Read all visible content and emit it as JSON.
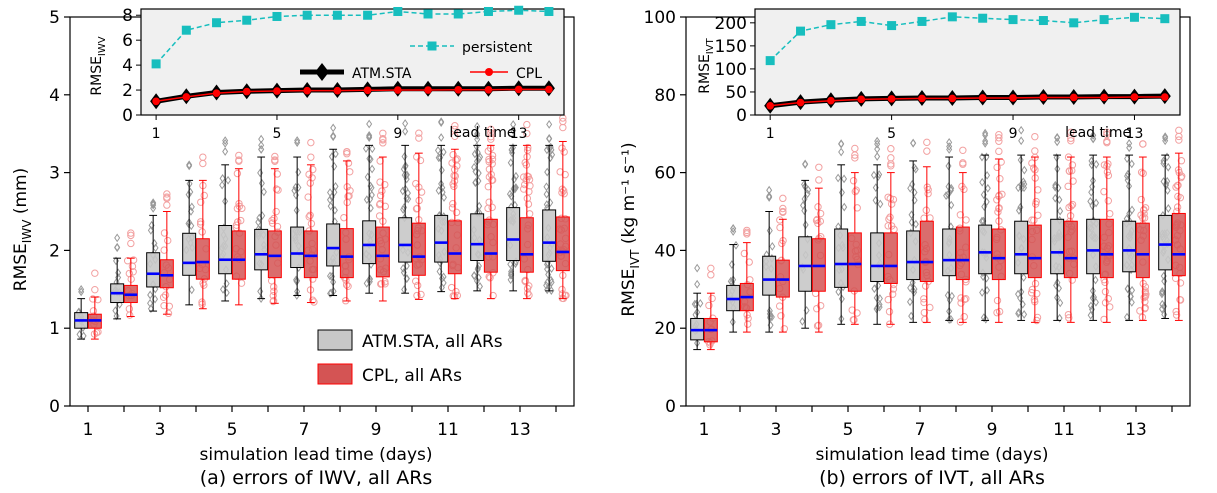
{
  "colors": {
    "atm_box": "#c8c8c8",
    "atm_edge": "#000000",
    "cpl_box": "#d45454",
    "cpl_edge": "#ff0000",
    "median": "#0000ff",
    "persistent": "#17bebe",
    "inset_bg": "#f0f0f0",
    "atm_outlier": "#999999",
    "cpl_outlier": "#f2a0a0"
  },
  "chart_data": [
    {
      "type": "box",
      "panel": "a",
      "caption": "(a) errors of IWV, all ARs",
      "xlabel": "simulation lead time (days)",
      "ylabel_main": "RMSE",
      "ylabel_sub": "IWV",
      "ylabel_unit": " (mm)",
      "ylim": [
        0,
        5
      ],
      "yticks": [
        "0",
        "1",
        "2",
        "3",
        "4",
        "5"
      ],
      "xticks": [
        "1",
        "3",
        "5",
        "7",
        "9",
        "11",
        "13"
      ],
      "lead_days": [
        1,
        2,
        3,
        4,
        5,
        6,
        7,
        8,
        9,
        10,
        11,
        12,
        13,
        14
      ],
      "legend": [
        "ATM.STA, all ARs",
        "CPL, all ARs"
      ],
      "atm": {
        "median": [
          1.1,
          1.45,
          1.7,
          1.84,
          1.88,
          1.95,
          1.96,
          2.03,
          2.07,
          2.07,
          2.1,
          2.08,
          2.14,
          2.1
        ],
        "q1": [
          1.0,
          1.33,
          1.53,
          1.68,
          1.7,
          1.75,
          1.78,
          1.8,
          1.83,
          1.85,
          1.85,
          1.87,
          1.87,
          1.86
        ],
        "q3": [
          1.2,
          1.57,
          1.97,
          2.22,
          2.32,
          2.27,
          2.3,
          2.34,
          2.38,
          2.42,
          2.45,
          2.47,
          2.55,
          2.52
        ],
        "whislo": [
          0.86,
          1.12,
          1.22,
          1.3,
          1.35,
          1.38,
          1.42,
          1.42,
          1.45,
          1.45,
          1.47,
          1.48,
          1.48,
          1.48
        ],
        "whishi": [
          1.38,
          1.9,
          2.45,
          2.9,
          3.1,
          3.2,
          3.2,
          3.3,
          3.35,
          3.35,
          3.35,
          3.35,
          3.35,
          3.35
        ]
      },
      "cpl": {
        "median": [
          1.1,
          1.43,
          1.68,
          1.85,
          1.88,
          1.93,
          1.93,
          1.92,
          1.93,
          1.92,
          1.96,
          1.96,
          1.95,
          1.98
        ],
        "q1": [
          1.0,
          1.33,
          1.52,
          1.63,
          1.63,
          1.65,
          1.65,
          1.65,
          1.66,
          1.68,
          1.7,
          1.72,
          1.72,
          1.74
        ],
        "q3": [
          1.18,
          1.55,
          1.88,
          2.15,
          2.25,
          2.25,
          2.25,
          2.28,
          2.3,
          2.35,
          2.38,
          2.4,
          2.42,
          2.43
        ],
        "whislo": [
          0.86,
          1.15,
          1.18,
          1.25,
          1.3,
          1.32,
          1.33,
          1.35,
          1.35,
          1.37,
          1.38,
          1.38,
          1.38,
          1.38
        ],
        "whishi": [
          1.4,
          1.9,
          2.5,
          2.9,
          3.05,
          3.05,
          3.1,
          3.15,
          3.2,
          3.25,
          3.3,
          3.35,
          3.35,
          3.4
        ]
      },
      "inset": {
        "ylabel_main": "RMSE",
        "ylabel_sub": "IWV",
        "ylim": [
          0,
          8.5
        ],
        "yticks": [
          0,
          2,
          4,
          6,
          8
        ],
        "xlabel": "lead time",
        "xticks": [
          "1",
          "5",
          "9",
          "13"
        ],
        "series": [
          {
            "name": "persistent",
            "values": [
              4.1,
              6.8,
              7.4,
              7.6,
              7.9,
              8.0,
              8.0,
              8.0,
              8.3,
              8.1,
              8.1,
              8.3,
              8.4,
              8.3
            ]
          },
          {
            "name": "ATM.STA",
            "values": [
              1.1,
              1.5,
              1.8,
              1.9,
              1.95,
              2.0,
              2.0,
              2.05,
              2.1,
              2.1,
              2.1,
              2.1,
              2.15,
              2.15
            ]
          },
          {
            "name": "CPL",
            "values": [
              1.1,
              1.45,
              1.75,
              1.88,
              1.92,
              1.95,
              1.95,
              1.98,
              2.0,
              2.0,
              2.02,
              2.02,
              2.05,
              2.05
            ]
          }
        ]
      }
    },
    {
      "type": "box",
      "panel": "b",
      "caption": "(b) errors of IVT, all ARs",
      "xlabel": "simulation lead time (days)",
      "ylabel_main": "RMSE",
      "ylabel_sub": "IVT",
      "ylabel_unit": " (kg m⁻¹ s⁻¹)",
      "ylim": [
        0,
        100
      ],
      "yticks": [
        "0",
        "20",
        "40",
        "60",
        "80",
        "100"
      ],
      "xticks": [
        "1",
        "3",
        "5",
        "7",
        "9",
        "11",
        "13"
      ],
      "lead_days": [
        1,
        2,
        3,
        4,
        5,
        6,
        7,
        8,
        9,
        10,
        11,
        12,
        13,
        14
      ],
      "atm": {
        "median": [
          19.5,
          27.5,
          32.5,
          36,
          36.5,
          36,
          37,
          37.5,
          39.5,
          39,
          39.5,
          40,
          40,
          41.5
        ],
        "q1": [
          17,
          24.5,
          28.5,
          29.5,
          30.5,
          32,
          32.5,
          33.5,
          34,
          34,
          34,
          34,
          34.5,
          35
        ],
        "q3": [
          22.5,
          31,
          38.5,
          43.5,
          45.5,
          44.5,
          45,
          45.5,
          46.5,
          47.5,
          48,
          48,
          47.5,
          49
        ],
        "whislo": [
          14.5,
          19,
          19,
          20,
          21,
          21,
          21.5,
          22,
          22,
          22,
          22,
          22,
          22,
          22.5
        ],
        "whishi": [
          29,
          41.5,
          50,
          58,
          62,
          62,
          63,
          64,
          64.5,
          64.5,
          64.5,
          64.5,
          64.5,
          64.5
        ]
      },
      "cpl": {
        "median": [
          19.5,
          28,
          32.5,
          36,
          36.5,
          36,
          37,
          37.5,
          38,
          38,
          38,
          39,
          39,
          39
        ],
        "q1": [
          16.5,
          24.5,
          28,
          29.5,
          29.5,
          31.5,
          32,
          32.5,
          32.5,
          33,
          33,
          33,
          33,
          33.5
        ],
        "q3": [
          22.5,
          31.5,
          37.5,
          43,
          44.5,
          44.5,
          47.5,
          46,
          45.5,
          46.5,
          47.5,
          48,
          47,
          49.5
        ],
        "whislo": [
          14.5,
          19,
          19,
          19,
          21,
          21,
          21.5,
          21.5,
          21.5,
          21.5,
          21.5,
          21.5,
          22,
          22
        ],
        "whishi": [
          29,
          42,
          48,
          56,
          60,
          60,
          61.5,
          60,
          63.5,
          64,
          64,
          64,
          64,
          65
        ]
      },
      "inset": {
        "ylabel_main": "RMSE",
        "ylabel_sub": "IVT",
        "ylim": [
          0,
          230
        ],
        "yticks": [
          0,
          50,
          100,
          150,
          200
        ],
        "xlabel": "lead time",
        "xticks": [
          "1",
          "5",
          "9",
          "13"
        ],
        "series": [
          {
            "name": "persistent",
            "values": [
              118,
              182,
              196,
              203,
              194,
              203,
              213,
              210,
              207,
              205,
              200,
              207,
              212,
              209
            ]
          },
          {
            "name": "ATM.STA",
            "values": [
              20,
              28,
              32,
              35,
              36,
              37,
              37,
              38,
              38,
              39,
              39,
              40,
              40,
              41
            ]
          },
          {
            "name": "CPL",
            "values": [
              20,
              27,
              31,
              34,
              35,
              36,
              36,
              37,
              37,
              38,
              38,
              38,
              39,
              39
            ]
          }
        ]
      }
    }
  ]
}
